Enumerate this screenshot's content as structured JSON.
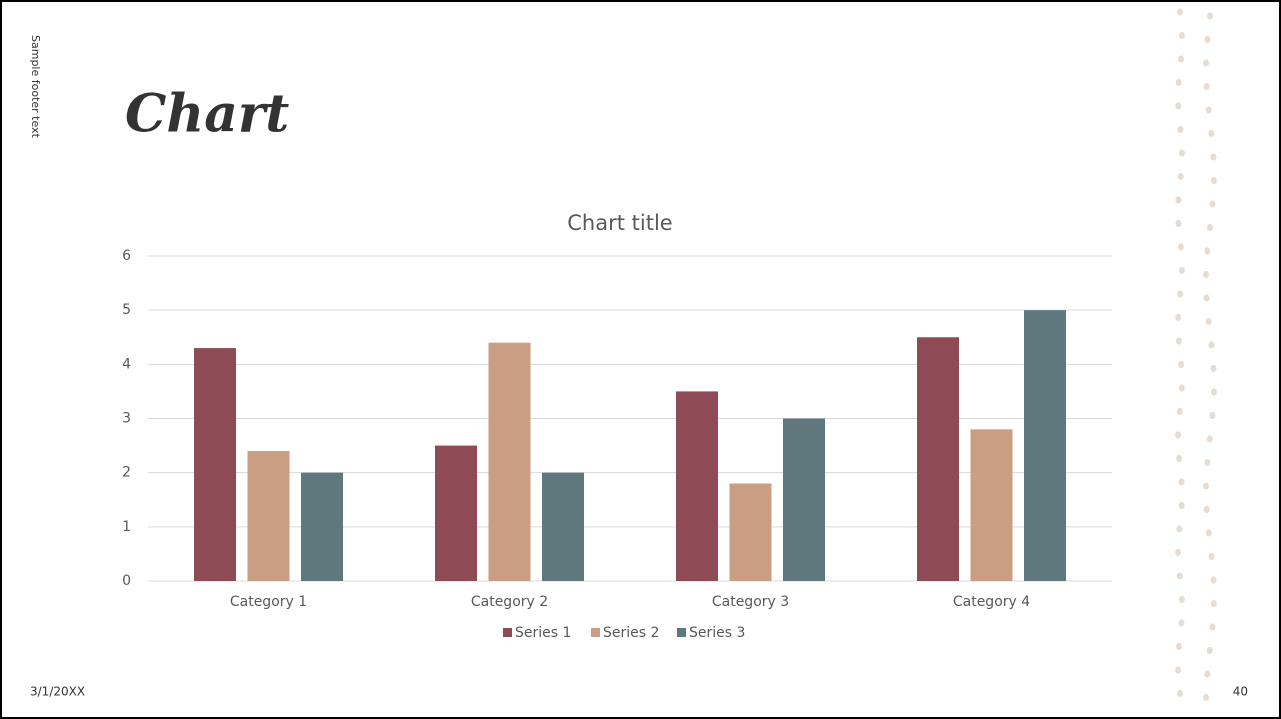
{
  "slide": {
    "title": "Chart",
    "footer": "Sample footer text",
    "date": "3/1/20XX",
    "page_number": "40"
  },
  "chart_data": {
    "type": "bar",
    "title": "Chart title",
    "categories": [
      "Category 1",
      "Category 2",
      "Category 3",
      "Category 4"
    ],
    "series": [
      {
        "name": "Series 1",
        "color": "#8e4b55",
        "values": [
          4.3,
          2.5,
          3.5,
          4.5
        ]
      },
      {
        "name": "Series 2",
        "color": "#c99e83",
        "values": [
          2.4,
          4.4,
          1.8,
          2.8
        ]
      },
      {
        "name": "Series 3",
        "color": "#5f787e",
        "values": [
          2,
          2,
          3,
          5
        ]
      }
    ],
    "ylim": [
      0,
      6
    ],
    "yticks": [
      0,
      1,
      2,
      3,
      4,
      5,
      6
    ],
    "grid": true,
    "legend": "bottom"
  }
}
